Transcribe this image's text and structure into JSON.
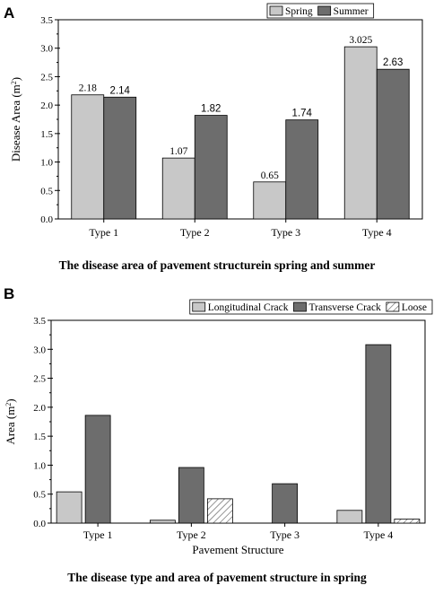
{
  "chart_data": [
    {
      "panel": "A",
      "type": "bar",
      "title": "",
      "caption": "The disease area of pavement structurein spring and summer",
      "ylabel": "Disease Area (m",
      "ylabel_sup": "2",
      "ylabel_end": ")",
      "xlabel": "",
      "ylim": [
        0,
        3.5
      ],
      "yticks": [
        "0.0",
        "0.5",
        "1.0",
        "1.5",
        "2.0",
        "2.5",
        "3.0",
        "3.5"
      ],
      "categories": [
        "Type 1",
        "Type 2",
        "Type 3",
        "Type 4"
      ],
      "legend_position": "top-right",
      "grid": false,
      "series": [
        {
          "name": "Spring",
          "color": "#c8c8c8",
          "pattern": "solid",
          "values": [
            2.18,
            1.07,
            0.65,
            3.025
          ],
          "labels": [
            "2.18",
            "1.07",
            "0.65",
            "3.025"
          ]
        },
        {
          "name": "Summer",
          "color": "#6d6d6d",
          "pattern": "solid",
          "values": [
            2.14,
            1.82,
            1.74,
            2.63
          ],
          "labels": [
            "2.14",
            "1.82",
            "1.74",
            "2.63"
          ]
        }
      ]
    },
    {
      "panel": "B",
      "type": "bar",
      "title": "",
      "caption": "The disease type and area of pavement structure in spring",
      "ylabel": "Area (m",
      "ylabel_sup": "2",
      "ylabel_end": ")",
      "xlabel": "Pavement Structure",
      "ylim": [
        0,
        3.5
      ],
      "yticks": [
        "0.0",
        "0.5",
        "1.0",
        "1.5",
        "2.0",
        "2.5",
        "3.0",
        "3.5"
      ],
      "categories": [
        "Type 1",
        "Type 2",
        "Type 3",
        "Type 4"
      ],
      "legend_position": "top",
      "grid": false,
      "series": [
        {
          "name": "Longitudinal Crack",
          "color": "#c8c8c8",
          "pattern": "solid",
          "values": [
            0.54,
            0.05,
            0,
            0.22
          ]
        },
        {
          "name": "Transverse Crack",
          "color": "#6d6d6d",
          "pattern": "solid",
          "values": [
            1.86,
            0.96,
            0.68,
            3.08
          ]
        },
        {
          "name": "Loose",
          "color": "#ffffff",
          "pattern": "hatch",
          "values": [
            0,
            0.42,
            0,
            0.07
          ]
        }
      ]
    }
  ]
}
